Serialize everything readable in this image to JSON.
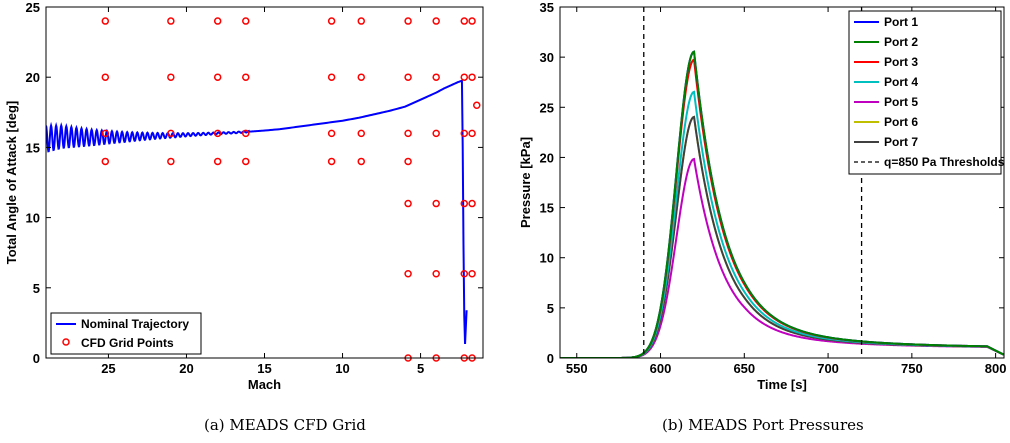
{
  "captions": {
    "left": "(a) MEADS CFD Grid",
    "right": "(b) MEADS Port Pressures"
  },
  "chart_data": [
    {
      "type": "scatter",
      "xlabel": "Mach",
      "ylabel": "Total Angle of Attack [deg]",
      "xlim": [
        29,
        1
      ],
      "x_reversed": true,
      "ylim": [
        0,
        25
      ],
      "xticks": [
        25,
        20,
        15,
        10,
        5
      ],
      "yticks": [
        0,
        5,
        10,
        15,
        20,
        25
      ],
      "grid": false,
      "legend_position": "bottom-left",
      "series": [
        {
          "name": "Nominal Trajectory",
          "kind": "line",
          "color": "#0000ff",
          "points": [
            [
              29.0,
              15.6
            ],
            [
              28.0,
              15.75
            ],
            [
              27.0,
              15.72
            ],
            [
              26.0,
              15.7
            ],
            [
              25.0,
              15.72
            ],
            [
              24.0,
              15.74
            ],
            [
              23.0,
              15.78
            ],
            [
              22.0,
              15.82
            ],
            [
              21.0,
              15.85
            ],
            [
              20.0,
              15.9
            ],
            [
              19.0,
              15.95
            ],
            [
              18.0,
              16.0
            ],
            [
              17.0,
              16.05
            ],
            [
              16.0,
              16.12
            ],
            [
              15.0,
              16.2
            ],
            [
              14.0,
              16.3
            ],
            [
              13.0,
              16.45
            ],
            [
              12.0,
              16.6
            ],
            [
              11.0,
              16.75
            ],
            [
              10.0,
              16.9
            ],
            [
              9.0,
              17.1
            ],
            [
              8.0,
              17.35
            ],
            [
              7.0,
              17.6
            ],
            [
              6.0,
              17.9
            ],
            [
              5.0,
              18.4
            ],
            [
              4.0,
              18.9
            ],
            [
              3.5,
              19.2
            ],
            [
              3.0,
              19.45
            ],
            [
              2.6,
              19.65
            ],
            [
              2.35,
              19.75
            ],
            [
              2.3,
              15.0
            ],
            [
              2.25,
              8.0
            ],
            [
              2.2,
              3.0
            ],
            [
              2.15,
              1.0
            ]
          ],
          "oscillation": {
            "from_mach": 29.0,
            "to_mach": 16.0,
            "amplitude_start_deg": 0.9,
            "amplitude_end_deg": 0.05,
            "cycles": 40
          }
        },
        {
          "name": "CFD Grid Points",
          "kind": "markers",
          "marker": "circle",
          "color": "#ff0000",
          "points": [
            [
              25.2,
              24
            ],
            [
              25.2,
              20
            ],
            [
              25.2,
              16
            ],
            [
              25.2,
              14
            ],
            [
              21.0,
              24
            ],
            [
              21.0,
              20
            ],
            [
              21.0,
              16
            ],
            [
              21.0,
              14
            ],
            [
              18.0,
              24
            ],
            [
              18.0,
              20
            ],
            [
              18.0,
              16
            ],
            [
              18.0,
              14
            ],
            [
              16.2,
              24
            ],
            [
              16.2,
              20
            ],
            [
              16.2,
              16
            ],
            [
              16.2,
              14
            ],
            [
              10.7,
              24
            ],
            [
              10.7,
              20
            ],
            [
              10.7,
              16
            ],
            [
              10.7,
              14
            ],
            [
              8.8,
              24
            ],
            [
              8.8,
              20
            ],
            [
              8.8,
              16
            ],
            [
              8.8,
              14
            ],
            [
              5.8,
              24
            ],
            [
              5.8,
              20
            ],
            [
              5.8,
              16
            ],
            [
              5.8,
              14
            ],
            [
              5.8,
              11
            ],
            [
              5.8,
              6
            ],
            [
              5.8,
              0
            ],
            [
              4.0,
              24
            ],
            [
              4.0,
              20
            ],
            [
              4.0,
              16
            ],
            [
              4.0,
              11
            ],
            [
              4.0,
              6
            ],
            [
              4.0,
              0
            ],
            [
              2.2,
              24
            ],
            [
              2.2,
              20
            ],
            [
              2.2,
              16
            ],
            [
              2.2,
              11
            ],
            [
              2.2,
              6
            ],
            [
              2.2,
              0
            ],
            [
              1.7,
              24
            ],
            [
              1.7,
              20
            ],
            [
              1.7,
              16
            ],
            [
              1.7,
              11
            ],
            [
              1.7,
              6
            ],
            [
              1.7,
              0
            ],
            [
              1.4,
              18
            ]
          ]
        }
      ]
    },
    {
      "type": "line",
      "xlabel": "Time [s]",
      "ylabel": "Pressure [kPa]",
      "xlim": [
        540,
        805
      ],
      "ylim": [
        0,
        35
      ],
      "xticks": [
        550,
        600,
        650,
        700,
        750,
        800
      ],
      "yticks": [
        0,
        5,
        10,
        15,
        20,
        25,
        30,
        35
      ],
      "grid": false,
      "legend_position": "top-right",
      "peak_time": 620,
      "series": [
        {
          "name": "Port 1",
          "color": "#0000ff",
          "peak": 30.5
        },
        {
          "name": "Port 2",
          "color": "#008000",
          "peak": 30.5
        },
        {
          "name": "Port 3",
          "color": "#ff0000",
          "peak": 29.7
        },
        {
          "name": "Port 4",
          "color": "#00bfbf",
          "peak": 26.5
        },
        {
          "name": "Port 5",
          "color": "#bf00bf",
          "peak": 19.8
        },
        {
          "name": "Port 6",
          "color": "#bfbf00",
          "peak": 24.0
        },
        {
          "name": "Port 7",
          "color": "#404040",
          "peak": 24.0
        }
      ],
      "thresholds": {
        "name": "q=850 Pa Thresholds",
        "color": "#000000",
        "style": "dashed",
        "x": [
          590,
          720
        ]
      }
    }
  ]
}
